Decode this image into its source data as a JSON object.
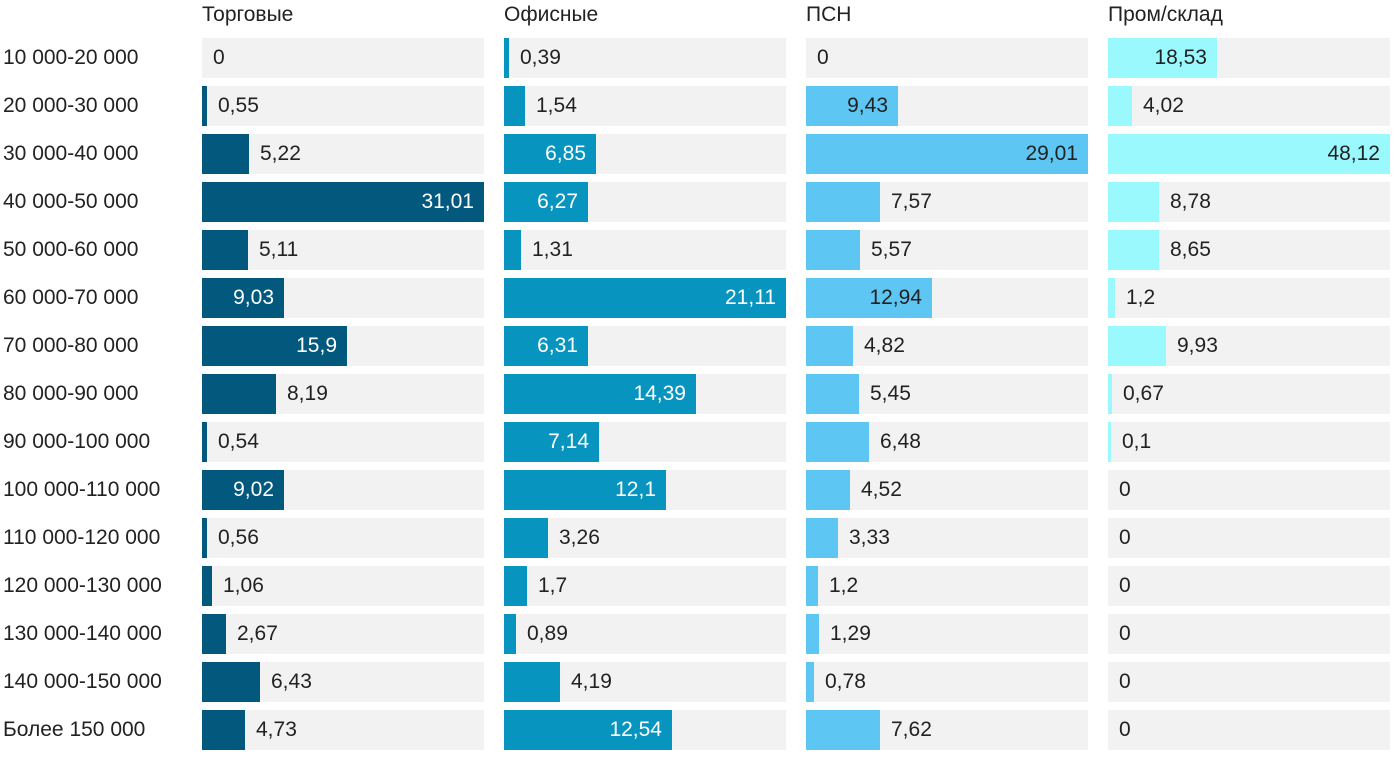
{
  "chart_data": {
    "type": "bar",
    "orientation": "horizontal",
    "layout": "small-multiples",
    "categories": [
      "10 000-20 000",
      "20 000-30 000",
      "30 000-40 000",
      "40 000-50 000",
      "50 000-60 000",
      "60 000-70 000",
      "70 000-80 000",
      "80 000-90 000",
      "90 000-100 000",
      "100 000-110 000",
      "110 000-120 000",
      "120 000-130 000",
      "130 000-140 000",
      "140 000-150 000",
      "Более 150 000"
    ],
    "series": [
      {
        "name": "Торговые",
        "color": "#03587e",
        "label_color": "#ffffff",
        "values": [
          0,
          0.55,
          5.22,
          31.01,
          5.11,
          9.03,
          15.9,
          8.19,
          0.54,
          9.02,
          0.56,
          1.06,
          2.67,
          6.43,
          4.73
        ],
        "labels": [
          "0",
          "0,55",
          "5,22",
          "31,01",
          "5,11",
          "9,03",
          "15,9",
          "8,19",
          "0,54",
          "9,02",
          "0,56",
          "1,06",
          "2,67",
          "6,43",
          "4,73"
        ]
      },
      {
        "name": "Офисные",
        "color": "#0795c0",
        "label_color": "#ffffff",
        "values": [
          0.39,
          1.54,
          6.85,
          6.27,
          1.31,
          21.11,
          6.31,
          14.39,
          7.14,
          12.1,
          3.26,
          1.7,
          0.89,
          4.19,
          12.54
        ],
        "labels": [
          "0,39",
          "1,54",
          "6,85",
          "6,27",
          "1,31",
          "21,11",
          "6,31",
          "14,39",
          "7,14",
          "12,1",
          "3,26",
          "1,7",
          "0,89",
          "4,19",
          "12,54"
        ]
      },
      {
        "name": "ПСН",
        "color": "#5ec6f2",
        "label_color": "#222222",
        "values": [
          0,
          9.43,
          29.01,
          7.57,
          5.57,
          12.94,
          4.82,
          5.45,
          6.48,
          4.52,
          3.33,
          1.2,
          1.29,
          0.78,
          7.62
        ],
        "labels": [
          "0",
          "9,43",
          "29,01",
          "7,57",
          "5,57",
          "12,94",
          "4,82",
          "5,45",
          "6,48",
          "4,52",
          "3,33",
          "1,2",
          "1,29",
          "0,78",
          "7,62"
        ]
      },
      {
        "name": "Пром/склад",
        "color": "#99f9fd",
        "label_color": "#222222",
        "values": [
          18.53,
          4.02,
          48.12,
          8.78,
          8.65,
          1.2,
          9.93,
          0.67,
          0.1,
          0,
          0,
          0,
          0,
          0,
          0
        ],
        "labels": [
          "18,53",
          "4,02",
          "48,12",
          "8,78",
          "8,65",
          "1,2",
          "9,93",
          "0,67",
          "0,1",
          "0",
          "0",
          "0",
          "0",
          "0",
          "0"
        ]
      }
    ],
    "panel_max": [
      31.01,
      21.11,
      29.01,
      48.12
    ],
    "grid": false,
    "legend": "none"
  }
}
